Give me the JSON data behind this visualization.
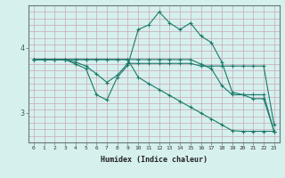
{
  "xlabel": "Humidex (Indice chaleur)",
  "bg_color": "#d6f0ee",
  "line_color": "#1a7a6a",
  "grid_color": "#c8a8b8",
  "xlim": [
    -0.5,
    23.5
  ],
  "ylim": [
    2.55,
    4.65
  ],
  "xticks": [
    0,
    1,
    2,
    3,
    4,
    5,
    6,
    7,
    8,
    9,
    10,
    11,
    12,
    13,
    14,
    15,
    16,
    17,
    18,
    19,
    20,
    21,
    22,
    23
  ],
  "yticks": [
    3,
    4
  ],
  "line1_x": [
    0,
    1,
    2,
    3,
    4,
    5,
    6,
    7,
    8,
    9,
    10,
    11,
    12,
    13,
    14,
    15,
    16,
    17,
    18,
    19,
    20,
    21,
    22,
    23
  ],
  "line1_y": [
    3.82,
    3.82,
    3.82,
    3.82,
    3.78,
    3.72,
    3.6,
    3.47,
    3.58,
    3.76,
    3.76,
    3.76,
    3.76,
    3.76,
    3.76,
    3.76,
    3.72,
    3.72,
    3.72,
    3.72,
    3.72,
    3.72,
    3.72,
    2.82
  ],
  "line2_x": [
    0,
    1,
    2,
    3,
    4,
    5,
    6,
    7,
    8,
    9,
    10,
    11,
    12,
    13,
    14,
    15,
    16,
    17,
    18,
    19,
    20,
    21,
    22,
    23
  ],
  "line2_y": [
    3.82,
    3.82,
    3.82,
    3.82,
    3.75,
    3.68,
    3.28,
    3.2,
    3.55,
    3.73,
    4.28,
    4.35,
    4.55,
    4.38,
    4.28,
    4.38,
    4.18,
    4.08,
    3.78,
    3.32,
    3.28,
    3.28,
    3.28,
    2.72
  ],
  "line3_x": [
    0,
    1,
    2,
    3,
    4,
    5,
    6,
    7,
    8,
    9,
    10,
    11,
    12,
    13,
    14,
    15,
    16,
    17,
    18,
    19,
    20,
    21,
    22,
    23
  ],
  "line3_y": [
    3.82,
    3.82,
    3.82,
    3.82,
    3.82,
    3.82,
    3.82,
    3.82,
    3.82,
    3.82,
    3.82,
    3.82,
    3.82,
    3.82,
    3.82,
    3.82,
    3.75,
    3.68,
    3.42,
    3.28,
    3.28,
    3.22,
    3.22,
    2.72
  ],
  "line4_x": [
    0,
    1,
    2,
    3,
    4,
    5,
    6,
    7,
    8,
    9,
    10,
    11,
    12,
    13,
    14,
    15,
    16,
    17,
    18,
    19,
    20,
    21,
    22,
    23
  ],
  "line4_y": [
    3.82,
    3.82,
    3.82,
    3.82,
    3.82,
    3.82,
    3.82,
    3.82,
    3.82,
    3.82,
    3.55,
    3.45,
    3.36,
    3.27,
    3.18,
    3.09,
    3.0,
    2.91,
    2.82,
    2.73,
    2.72,
    2.72,
    2.72,
    2.72
  ]
}
